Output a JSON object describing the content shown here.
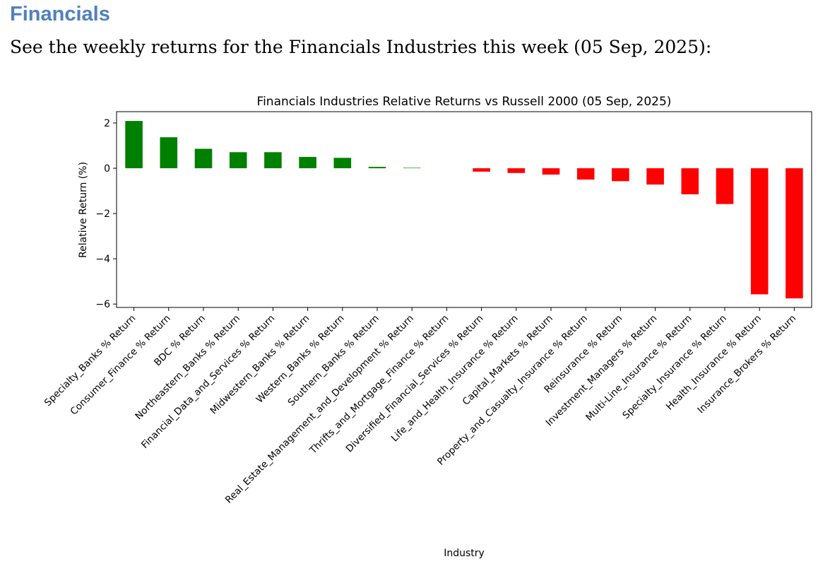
{
  "heading": "Financials",
  "intro": "See the weekly returns for the Financials Industries this week (05 Sep, 2025):",
  "chart_data": {
    "type": "bar",
    "title": "Financials Industries Relative Returns vs Russell 2000 (05 Sep, 2025)",
    "xlabel": "Industry",
    "ylabel": "Relative Return (%)",
    "ylim": [
      -6.15,
      2.5
    ],
    "yticks": [
      2,
      0,
      -2,
      -4,
      -6
    ],
    "grid": false,
    "colors": {
      "positive": "#008000",
      "negative": "#ff0000"
    },
    "categories": [
      "Specialty_Banks % Return",
      "Consumer_Finance % Return",
      "BDC % Return",
      "Northeastern_Banks % Return",
      "Financial_Data_and_Services % Return",
      "Midwestern_Banks % Return",
      "Western_Banks % Return",
      "Southern_Banks % Return",
      "Real_Estate_Management_and_Development % Return",
      "Thrifts_and_Mortgage_Finance % Return",
      "Diversified_Financial_Services % Return",
      "Life_and_Health_Insurance % Return",
      "Capital_Markets % Return",
      "Property_and_Casualty_Insurance % Return",
      "Reinsurance % Return",
      "Investment_Managers % Return",
      "Multi-Line_Insurance % Return",
      "Specialty_Insurance % Return",
      "Health_Insurance % Return",
      "Insurance_Brokers % Return"
    ],
    "values": [
      2.09,
      1.37,
      0.86,
      0.71,
      0.71,
      0.5,
      0.46,
      0.06,
      0.02,
      0.0,
      -0.15,
      -0.21,
      -0.28,
      -0.5,
      -0.57,
      -0.72,
      -1.15,
      -1.58,
      -5.57,
      -5.75
    ]
  }
}
